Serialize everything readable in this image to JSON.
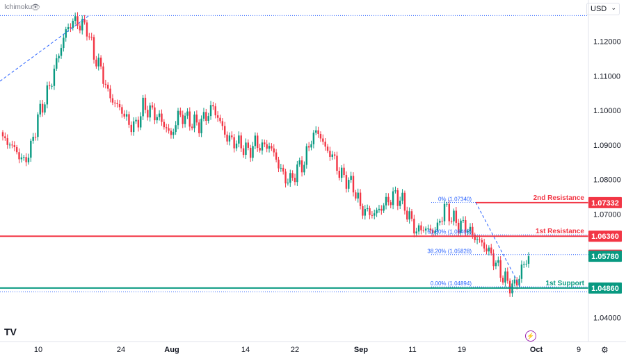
{
  "header": {
    "indicator_label": "Ichimoku",
    "currency": "USD"
  },
  "icons": {
    "eye": "eye-icon",
    "chevron": "chevron-down-icon",
    "logo": "tradingview-logo-icon",
    "bolt": "lightning-icon",
    "gear": "gear-icon"
  },
  "chart_data": {
    "type": "candlestick",
    "y_axis": {
      "ticks": [
        "1.12000",
        "1.11000",
        "1.10000",
        "1.09000",
        "1.08000",
        "1.07000",
        "1.04000"
      ],
      "range": [
        1.0355,
        1.13
      ],
      "position": "right"
    },
    "x_axis": {
      "ticks": [
        "10",
        "24",
        "Aug",
        "14",
        "22",
        "Sep",
        "11",
        "19",
        "Oct",
        "9"
      ],
      "bold_ticks": [
        "Aug",
        "Sep",
        "Oct"
      ]
    },
    "price_path": [
      1.0915,
      1.0905,
      1.088,
      1.085,
      1.089,
      1.098,
      1.103,
      1.109,
      1.1165,
      1.123,
      1.126,
      1.125,
      1.124,
      1.116,
      1.112,
      1.105,
      1.102,
      1.1,
      1.096,
      1.0955,
      1.101,
      1.1,
      1.0985,
      1.096,
      1.0925,
      1.0985,
      1.098,
      1.0965,
      1.096,
      1.0985,
      1.101,
      1.0965,
      1.092,
      1.091,
      1.09,
      1.088,
      1.0905,
      1.0895,
      1.09,
      1.086,
      1.081,
      1.0795,
      1.083,
      1.085,
      1.092,
      1.094,
      1.089,
      1.087,
      1.082,
      1.08,
      1.078,
      1.072,
      1.0705,
      1.07,
      1.072,
      1.074,
      1.0755,
      1.0735,
      1.069,
      1.065,
      1.066,
      1.065,
      1.066,
      1.072,
      1.069,
      1.067,
      1.0665,
      1.064,
      1.062,
      1.06,
      1.057,
      1.053,
      1.05,
      1.049,
      1.054,
      1.0578
    ],
    "levels": [
      {
        "label": "2nd Resistance",
        "value": "1.07332",
        "price": 1.07332,
        "color": "#f23645"
      },
      {
        "label": "1st Resistance",
        "value": "1.06360",
        "price": 1.0636,
        "color": "#f23645"
      },
      {
        "label": "1st Support",
        "value": "1.04860",
        "price": 1.0486,
        "color": "#089981"
      }
    ],
    "price_boxes": [
      {
        "value": "1.07332",
        "price": 1.07332,
        "color": "#f23645"
      },
      {
        "value": "1.06360",
        "price": 1.0636,
        "color": "#f23645"
      },
      {
        "value": "1.05810",
        "price": 1.0581,
        "color": "#f23645"
      },
      {
        "value": "1.05780",
        "price": 1.0578,
        "color": "#089981"
      },
      {
        "value": "1.04860",
        "price": 1.0486,
        "color": "#089981"
      }
    ],
    "fibonacci": [
      {
        "text": "0% (1.07340)",
        "price": 1.0734
      },
      {
        "text": "61.80% (1.06400)",
        "price": 1.064
      },
      {
        "text": "38.20% (1.05828)",
        "price": 1.05828
      },
      {
        "text": "0.00% (1.04894)",
        "price": 1.04894
      }
    ],
    "dotted_levels": [
      1.1275,
      1.0475
    ],
    "grid": false
  }
}
